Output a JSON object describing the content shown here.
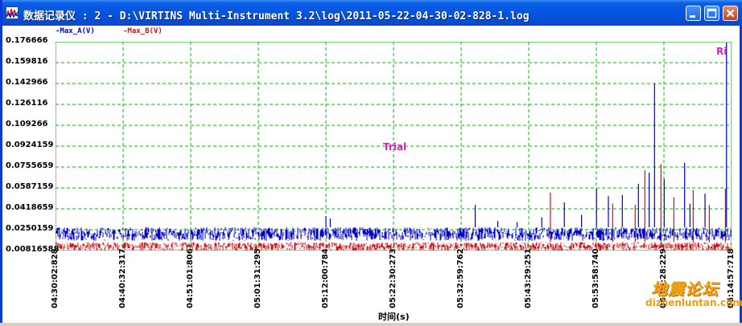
{
  "window": {
    "title": "数据记录仪 : 2 - D:\\VIRTINS Multi-Instrument 3.2\\log\\2011-05-22-04-30-02-828-1.log",
    "minimize_icon": "minimize-icon",
    "maximize_icon": "maximize-icon",
    "close_icon": "close-icon"
  },
  "legend": [
    {
      "label": "-Max_A(V)",
      "color": "#0000c8"
    },
    {
      "label": "-Max_B(V)",
      "color": "#c81414"
    }
  ],
  "overlay": {
    "trial_text": "Trial",
    "corner_text": "Ri"
  },
  "watermark": {
    "line1": "地震论坛",
    "line2": "dizhenluntan.com"
  },
  "colors": {
    "plot_grid": "#00c000",
    "series_a": "#0000c8",
    "series_b": "#c81414",
    "title_bar": "#0553dd"
  },
  "chart_data": {
    "type": "line",
    "xlabel": "时间(s)",
    "ylabel": "",
    "ylim": [
      0.00816588,
      0.176666
    ],
    "y_ticks": [
      "0.176666",
      "0.159816",
      "0.142966",
      "0.126116",
      "0.109266",
      "0.0924159",
      "0.0755659",
      "0.0587159",
      "0.0418659",
      "0.0250159",
      "0.00816588"
    ],
    "x_ticks": [
      "04:30:02:828",
      "04:40:32:317",
      "04:51:01:806",
      "05:01:31:295",
      "05:12:00:784",
      "05:22:30:273",
      "05:32:59:762",
      "05:43:29:251",
      "05:53:58:740",
      "06:04:28:229",
      "06:14:57:718"
    ],
    "grid": true,
    "series": [
      {
        "name": "Max_A(V)",
        "baseline_range": [
          0.016,
          0.027
        ],
        "spikes": [
          {
            "x": "05:12:00",
            "y": 0.036
          },
          {
            "x": "05:12:40",
            "y": 0.034
          },
          {
            "x": "05:35:10",
            "y": 0.045
          },
          {
            "x": "05:38:40",
            "y": 0.032
          },
          {
            "x": "05:41:40",
            "y": 0.031
          },
          {
            "x": "05:45:30",
            "y": 0.035
          },
          {
            "x": "05:49:00",
            "y": 0.047
          },
          {
            "x": "05:51:40",
            "y": 0.037
          },
          {
            "x": "05:54:00",
            "y": 0.058
          },
          {
            "x": "05:55:50",
            "y": 0.052
          },
          {
            "x": "05:58:00",
            "y": 0.053
          },
          {
            "x": "06:00:30",
            "y": 0.062
          },
          {
            "x": "06:02:10",
            "y": 0.071
          },
          {
            "x": "06:03:00",
            "y": 0.143
          },
          {
            "x": "06:04:30",
            "y": 0.066
          },
          {
            "x": "06:07:40",
            "y": 0.079
          },
          {
            "x": "06:08:30",
            "y": 0.046
          },
          {
            "x": "06:10:50",
            "y": 0.054
          },
          {
            "x": "06:14:10",
            "y": 0.176
          }
        ]
      },
      {
        "name": "Max_B(V)",
        "baseline_range": [
          0.008,
          0.015
        ],
        "spikes": [
          {
            "x": "05:46:50",
            "y": 0.055
          },
          {
            "x": "05:56:30",
            "y": 0.046
          },
          {
            "x": "06:00:00",
            "y": 0.045
          },
          {
            "x": "06:01:30",
            "y": 0.073
          },
          {
            "x": "06:04:00",
            "y": 0.078
          },
          {
            "x": "06:06:00",
            "y": 0.051
          },
          {
            "x": "06:09:00",
            "y": 0.057
          },
          {
            "x": "06:11:30",
            "y": 0.045
          },
          {
            "x": "06:14:00",
            "y": 0.058
          }
        ]
      }
    ]
  }
}
